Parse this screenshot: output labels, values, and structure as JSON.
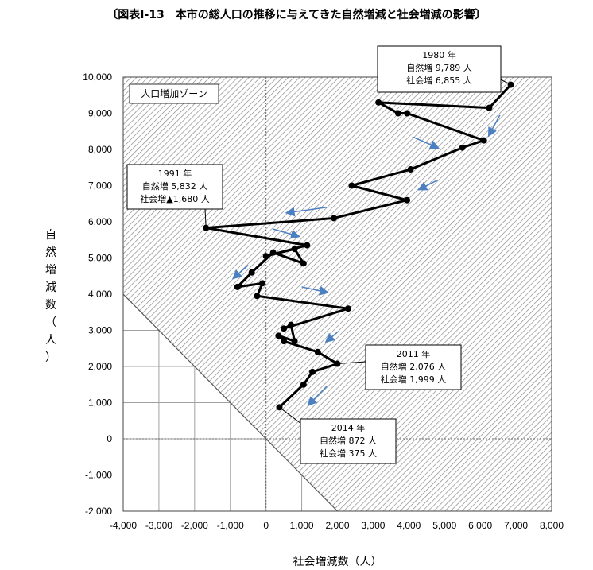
{
  "title": "〔図表Ⅰ-13　本市の総人口の推移に与えてきた自然増減と社会増減の影響〕",
  "chart_data": {
    "type": "scatter",
    "xlabel": "社会増減数（人）",
    "ylabel": "自然増減数（人）",
    "xlim": [
      -4000,
      8000
    ],
    "ylim": [
      -2000,
      10000
    ],
    "xticks": [
      "-4,000",
      "-3,000",
      "-2,000",
      "-1,000",
      "0",
      "1,000",
      "2,000",
      "3,000",
      "4,000",
      "5,000",
      "6,000",
      "7,000",
      "8,000"
    ],
    "yticks": [
      "-2,000",
      "-1,000",
      "0",
      "1,000",
      "2,000",
      "3,000",
      "4,000",
      "5,000",
      "6,000",
      "7,000",
      "8,000",
      "9,000",
      "10,000"
    ],
    "grid": true,
    "shaded_zone": {
      "label": "人口増加ゾーン",
      "description": "region where natural + social change > 0 (hatched)"
    },
    "series": [
      {
        "points": [
          {
            "x": 6855,
            "y": 9789
          },
          {
            "x": 6250,
            "y": 9150
          },
          {
            "x": 3150,
            "y": 9300
          },
          {
            "x": 3700,
            "y": 9000
          },
          {
            "x": 3950,
            "y": 9000
          },
          {
            "x": 6100,
            "y": 8250
          },
          {
            "x": 5500,
            "y": 8050
          },
          {
            "x": 4050,
            "y": 7450
          },
          {
            "x": 2400,
            "y": 7000
          },
          {
            "x": 3950,
            "y": 6600
          },
          {
            "x": 1900,
            "y": 6100
          },
          {
            "x": -1680,
            "y": 5832
          },
          {
            "x": 1150,
            "y": 5350
          },
          {
            "x": 0,
            "y": 5050
          },
          {
            "x": 800,
            "y": 5250
          },
          {
            "x": 1050,
            "y": 4850
          },
          {
            "x": 200,
            "y": 5150
          },
          {
            "x": -400,
            "y": 4600
          },
          {
            "x": -800,
            "y": 4200
          },
          {
            "x": -100,
            "y": 4300
          },
          {
            "x": -250,
            "y": 3950
          },
          {
            "x": 2300,
            "y": 3600
          },
          {
            "x": 500,
            "y": 3050
          },
          {
            "x": 700,
            "y": 3150
          },
          {
            "x": 800,
            "y": 2700
          },
          {
            "x": 350,
            "y": 2850
          },
          {
            "x": 500,
            "y": 2700
          },
          {
            "x": 1450,
            "y": 2400
          },
          {
            "x": 1999,
            "y": 2076
          },
          {
            "x": 1300,
            "y": 1850
          },
          {
            "x": 1050,
            "y": 1500
          },
          {
            "x": 375,
            "y": 872
          }
        ]
      }
    ],
    "annotations": [
      {
        "lines": [
          "1980 年",
          "自然増 9,789 人",
          "社会増 6,855 人"
        ]
      },
      {
        "lines": [
          "1991 年",
          "自然増 5,832 人",
          "社会増▲1,680 人"
        ]
      },
      {
        "lines": [
          "2011 年",
          "自然増 2,076 人",
          "社会増 1,999 人"
        ]
      },
      {
        "lines": [
          "2014 年",
          "自然増 872 人",
          "社会増 375 人"
        ]
      }
    ],
    "trend_arrows": 9,
    "colors": {
      "line": "#000000",
      "arrow": "#4a7fc1",
      "hatch": "#8a8a8a",
      "grid": "#9a9a9a"
    }
  }
}
